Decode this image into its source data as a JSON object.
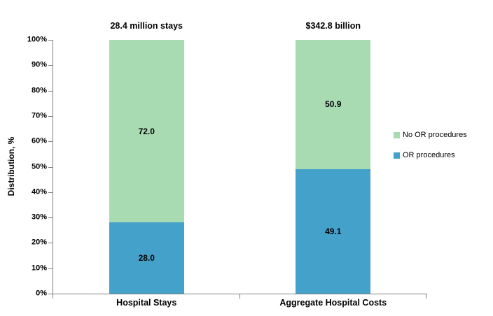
{
  "figure": {
    "background": "#ffffff",
    "axis_color": "#808080",
    "text_color": "#000000"
  },
  "chart_data": {
    "type": "bar",
    "stacked": true,
    "ylabel": "Distribution, %",
    "ylim": [
      0,
      100
    ],
    "ytick_step": 10,
    "yticks": [
      "0%",
      "10%",
      "20%",
      "30%",
      "40%",
      "50%",
      "60%",
      "70%",
      "80%",
      "90%",
      "100%"
    ],
    "grid": false,
    "categories": [
      "Hospital Stays",
      "Aggregate Hospital Costs"
    ],
    "bar_annotations": [
      "28.4 million stays",
      "$342.8 billion"
    ],
    "series": [
      {
        "name": "OR procedures",
        "color": "#44a1c9",
        "values": [
          28.0,
          49.1
        ]
      },
      {
        "name": "No OR procedures",
        "color": "#a9dbb3",
        "values": [
          72.0,
          50.9
        ]
      }
    ],
    "legend": {
      "position": "right",
      "entries": [
        {
          "label": "No OR procedures",
          "color": "#a9dbb3"
        },
        {
          "label": "OR procedures",
          "color": "#44a1c9"
        }
      ]
    }
  }
}
